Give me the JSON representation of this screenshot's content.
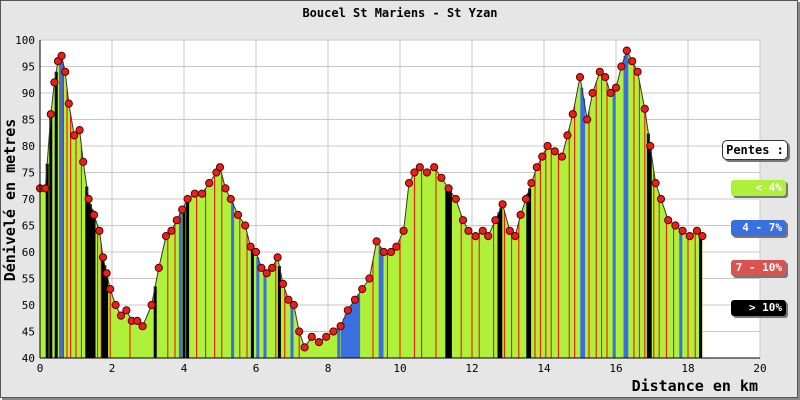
{
  "chart_data": {
    "type": "area",
    "title": "Boucel St Mariens - St Yzan",
    "xlabel": "Distance en km",
    "ylabel": "Dénivelé en metres",
    "xlim": [
      0,
      20
    ],
    "ylim": [
      40,
      100
    ],
    "x_ticks": [
      0,
      2,
      4,
      6,
      8,
      10,
      12,
      14,
      16,
      18,
      20
    ],
    "y_ticks": [
      40,
      45,
      50,
      55,
      60,
      65,
      70,
      75,
      80,
      85,
      90,
      95,
      100
    ],
    "grid": true,
    "legend_position": "right",
    "profile": [
      [
        0.0,
        72
      ],
      [
        0.15,
        72
      ],
      [
        0.3,
        86
      ],
      [
        0.4,
        92
      ],
      [
        0.5,
        96
      ],
      [
        0.6,
        97
      ],
      [
        0.7,
        94
      ],
      [
        0.8,
        88
      ],
      [
        0.95,
        82
      ],
      [
        1.1,
        83
      ],
      [
        1.2,
        77
      ],
      [
        1.35,
        70
      ],
      [
        1.5,
        67
      ],
      [
        1.65,
        64
      ],
      [
        1.75,
        59
      ],
      [
        1.85,
        56
      ],
      [
        1.95,
        53
      ],
      [
        2.1,
        50
      ],
      [
        2.25,
        48
      ],
      [
        2.4,
        49
      ],
      [
        2.55,
        47
      ],
      [
        2.7,
        47
      ],
      [
        2.85,
        46
      ],
      [
        3.1,
        50
      ],
      [
        3.3,
        57
      ],
      [
        3.5,
        63
      ],
      [
        3.65,
        64
      ],
      [
        3.8,
        66
      ],
      [
        3.95,
        68
      ],
      [
        4.1,
        70
      ],
      [
        4.3,
        71
      ],
      [
        4.5,
        71
      ],
      [
        4.7,
        73
      ],
      [
        4.9,
        75
      ],
      [
        5.0,
        76
      ],
      [
        5.15,
        72
      ],
      [
        5.3,
        70
      ],
      [
        5.5,
        67
      ],
      [
        5.7,
        65
      ],
      [
        5.85,
        61
      ],
      [
        6.0,
        60
      ],
      [
        6.15,
        57
      ],
      [
        6.3,
        56
      ],
      [
        6.45,
        57
      ],
      [
        6.6,
        59
      ],
      [
        6.75,
        54
      ],
      [
        6.9,
        51
      ],
      [
        7.05,
        50
      ],
      [
        7.2,
        45
      ],
      [
        7.35,
        42
      ],
      [
        7.55,
        44
      ],
      [
        7.75,
        43
      ],
      [
        7.95,
        44
      ],
      [
        8.15,
        45
      ],
      [
        8.35,
        46
      ],
      [
        8.55,
        49
      ],
      [
        8.75,
        51
      ],
      [
        8.95,
        53
      ],
      [
        9.15,
        55
      ],
      [
        9.35,
        62
      ],
      [
        9.55,
        60
      ],
      [
        9.75,
        60
      ],
      [
        9.9,
        61
      ],
      [
        10.1,
        64
      ],
      [
        10.25,
        73
      ],
      [
        10.4,
        75
      ],
      [
        10.55,
        76
      ],
      [
        10.75,
        75
      ],
      [
        10.95,
        76
      ],
      [
        11.15,
        74
      ],
      [
        11.35,
        72
      ],
      [
        11.55,
        70
      ],
      [
        11.75,
        66
      ],
      [
        11.9,
        64
      ],
      [
        12.1,
        63
      ],
      [
        12.3,
        64
      ],
      [
        12.45,
        63
      ],
      [
        12.65,
        66
      ],
      [
        12.85,
        69
      ],
      [
        13.05,
        64
      ],
      [
        13.2,
        63
      ],
      [
        13.35,
        67
      ],
      [
        13.5,
        70
      ],
      [
        13.65,
        73
      ],
      [
        13.8,
        76
      ],
      [
        13.95,
        78
      ],
      [
        14.1,
        80
      ],
      [
        14.3,
        79
      ],
      [
        14.5,
        78
      ],
      [
        14.65,
        82
      ],
      [
        14.8,
        86
      ],
      [
        15.0,
        93
      ],
      [
        15.2,
        85
      ],
      [
        15.35,
        90
      ],
      [
        15.55,
        94
      ],
      [
        15.7,
        93
      ],
      [
        15.85,
        90
      ],
      [
        16.0,
        91
      ],
      [
        16.15,
        95
      ],
      [
        16.3,
        98
      ],
      [
        16.45,
        96
      ],
      [
        16.6,
        94
      ],
      [
        16.8,
        87
      ],
      [
        16.95,
        80
      ],
      [
        17.1,
        73
      ],
      [
        17.25,
        70
      ],
      [
        17.45,
        66
      ],
      [
        17.65,
        65
      ],
      [
        17.85,
        64
      ],
      [
        18.05,
        63
      ],
      [
        18.25,
        64
      ],
      [
        18.4,
        63
      ]
    ],
    "slope_bars": [
      [
        0.2,
        "#000000"
      ],
      [
        0.3,
        "#000000"
      ],
      [
        0.45,
        "#000000"
      ],
      [
        0.55,
        "#ff0000"
      ],
      [
        0.6,
        "#3a6fe0"
      ],
      [
        0.65,
        "#ff0000"
      ],
      [
        0.75,
        "#ff0000"
      ],
      [
        0.85,
        "#ff0000"
      ],
      [
        1.0,
        "#ff0000"
      ],
      [
        1.15,
        "#ff0000"
      ],
      [
        1.3,
        "#000000"
      ],
      [
        1.35,
        "#000000"
      ],
      [
        1.4,
        "#000000"
      ],
      [
        1.45,
        "#000000"
      ],
      [
        1.5,
        "#000000"
      ],
      [
        1.6,
        "#ff0000"
      ],
      [
        1.7,
        "#ff0000"
      ],
      [
        1.75,
        "#000000"
      ],
      [
        1.8,
        "#000000"
      ],
      [
        1.85,
        "#000000"
      ],
      [
        1.95,
        "#ff0000"
      ],
      [
        2.5,
        "#ff0000"
      ],
      [
        3.2,
        "#000000"
      ],
      [
        3.55,
        "#ff0000"
      ],
      [
        3.75,
        "#ff0000"
      ],
      [
        3.9,
        "#3a6fe0"
      ],
      [
        4.0,
        "#000000"
      ],
      [
        4.1,
        "#000000"
      ],
      [
        4.35,
        "#ff0000"
      ],
      [
        4.6,
        "#ff0000"
      ],
      [
        4.85,
        "#ff0000"
      ],
      [
        5.05,
        "#ff0000"
      ],
      [
        5.35,
        "#3a6fe0"
      ],
      [
        5.55,
        "#ff0000"
      ],
      [
        5.75,
        "#ff0000"
      ],
      [
        5.9,
        "#000000"
      ],
      [
        6.05,
        "#3a6fe0"
      ],
      [
        6.25,
        "#3a6fe0"
      ],
      [
        6.55,
        "#ff0000"
      ],
      [
        6.65,
        "#000000"
      ],
      [
        6.8,
        "#ff0000"
      ],
      [
        7.0,
        "#3a6fe0"
      ],
      [
        7.2,
        "#ff0000"
      ],
      [
        8.3,
        "#3a6fe0"
      ],
      [
        8.4,
        "#3a6fe0"
      ],
      [
        8.45,
        "#3a6fe0"
      ],
      [
        8.5,
        "#3a6fe0"
      ],
      [
        8.55,
        "#3a6fe0"
      ],
      [
        8.6,
        "#3a6fe0"
      ],
      [
        8.65,
        "#3a6fe0"
      ],
      [
        8.7,
        "#3a6fe0"
      ],
      [
        8.75,
        "#3a6fe0"
      ],
      [
        8.8,
        "#3a6fe0"
      ],
      [
        8.85,
        "#3a6fe0"
      ],
      [
        9.25,
        "#ff0000"
      ],
      [
        9.45,
        "#3a6fe0"
      ],
      [
        9.5,
        "#3a6fe0"
      ],
      [
        9.65,
        "#ff0000"
      ],
      [
        10.0,
        "#ff0000"
      ],
      [
        10.4,
        "#ff0000"
      ],
      [
        10.6,
        "#ff0000"
      ],
      [
        11.0,
        "#ff0000"
      ],
      [
        11.3,
        "#000000"
      ],
      [
        11.35,
        "#000000"
      ],
      [
        11.4,
        "#000000"
      ],
      [
        11.7,
        "#ff0000"
      ],
      [
        12.0,
        "#ff0000"
      ],
      [
        12.2,
        "#ff0000"
      ],
      [
        12.6,
        "#ff0000"
      ],
      [
        12.75,
        "#000000"
      ],
      [
        12.8,
        "#000000"
      ],
      [
        12.9,
        "#ff0000"
      ],
      [
        13.1,
        "#ff0000"
      ],
      [
        13.3,
        "#ff0000"
      ],
      [
        13.55,
        "#000000"
      ],
      [
        13.6,
        "#000000"
      ],
      [
        13.75,
        "#ff0000"
      ],
      [
        13.9,
        "#ff0000"
      ],
      [
        14.05,
        "#ff0000"
      ],
      [
        14.2,
        "#ff0000"
      ],
      [
        14.4,
        "#ff0000"
      ],
      [
        14.7,
        "#ff0000"
      ],
      [
        14.85,
        "#ff0000"
      ],
      [
        15.05,
        "#3a6fe0"
      ],
      [
        15.1,
        "#3a6fe0"
      ],
      [
        15.25,
        "#ff0000"
      ],
      [
        15.45,
        "#ff0000"
      ],
      [
        15.6,
        "#ff0000"
      ],
      [
        15.75,
        "#ff0000"
      ],
      [
        15.95,
        "#3a6fe0"
      ],
      [
        16.25,
        "#3a6fe0"
      ],
      [
        16.3,
        "#3a6fe0"
      ],
      [
        16.5,
        "#ff0000"
      ],
      [
        16.65,
        "#ff0000"
      ],
      [
        16.8,
        "#ff0000"
      ],
      [
        16.9,
        "#000000"
      ],
      [
        16.95,
        "#000000"
      ],
      [
        17.05,
        "#ff0000"
      ],
      [
        17.2,
        "#ff0000"
      ],
      [
        17.4,
        "#ff0000"
      ],
      [
        17.6,
        "#ff0000"
      ],
      [
        17.8,
        "#3a6fe0"
      ],
      [
        18.0,
        "#ff0000"
      ],
      [
        18.2,
        "#ff0000"
      ],
      [
        18.35,
        "#000000"
      ]
    ],
    "colors": {
      "area": "#aef03a",
      "outline": "#333333",
      "point_fill": "#e8201a",
      "point_stroke": "#5a0000",
      "grid": "#c8c8c8",
      "plot_bg": "#ffffff",
      "frame_bg": "#e6e6e6"
    },
    "legend": {
      "title": "Pentes :",
      "items": [
        {
          "label": "< 4%",
          "bg": "#aef03a",
          "fg": "#ffffff"
        },
        {
          "label": "4 - 7%",
          "bg": "#3a6fe0",
          "fg": "#ffffff"
        },
        {
          "label": "7 - 10%",
          "bg": "#d9534f",
          "fg": "#ffffff"
        },
        {
          "label": "> 10%",
          "bg": "#000000",
          "fg": "#ffffff"
        }
      ]
    }
  }
}
